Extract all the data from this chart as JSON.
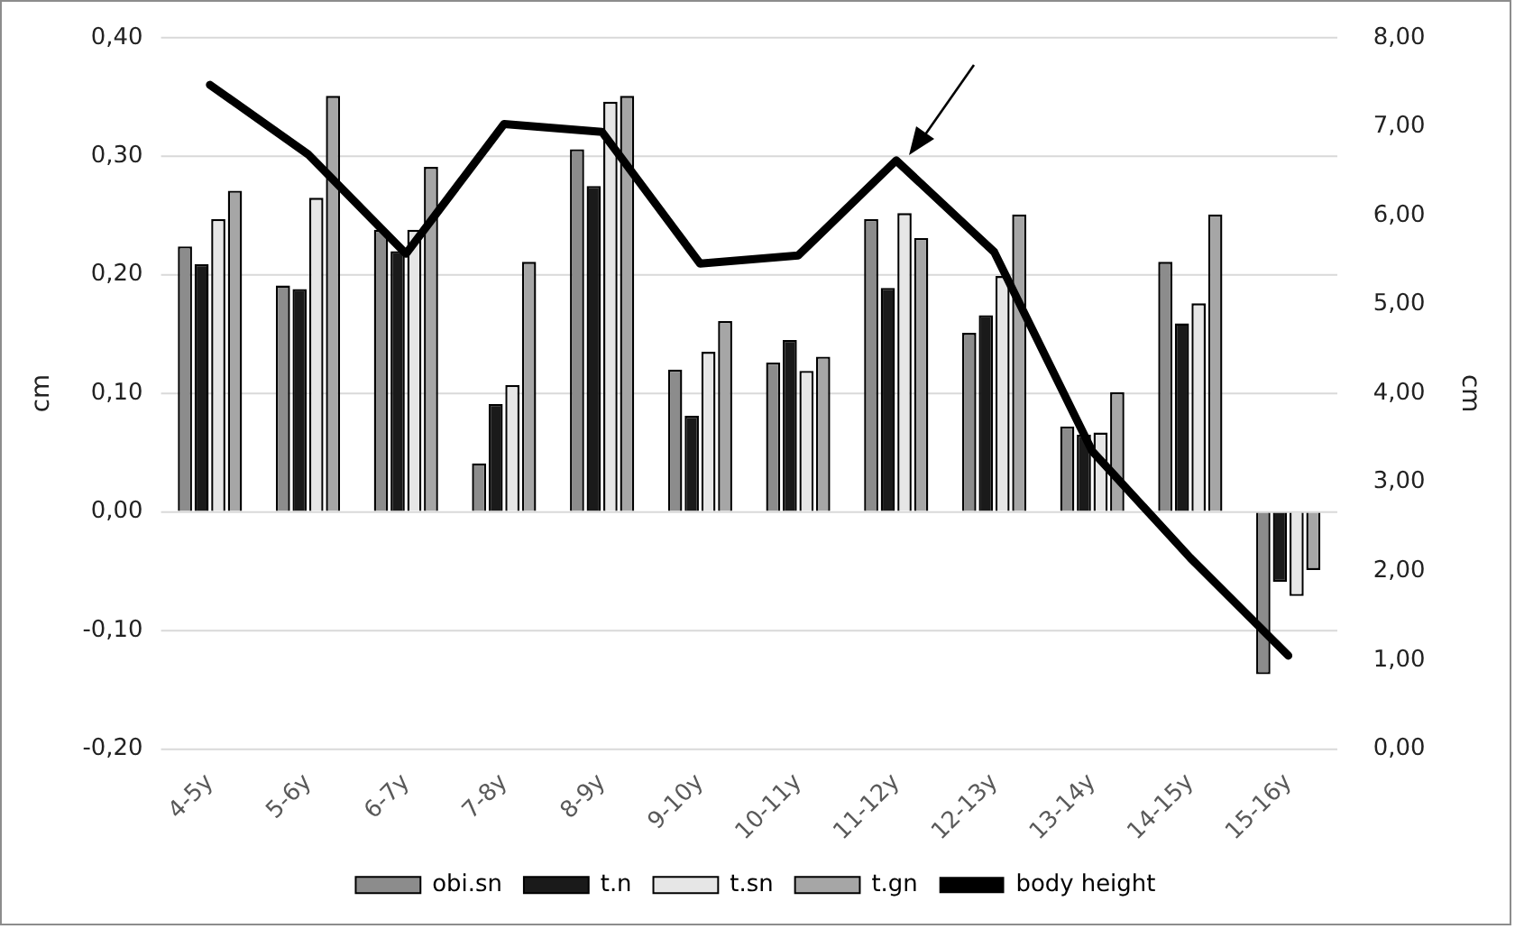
{
  "chart_data": {
    "type": "bar",
    "categories": [
      "4-5y",
      "5-6y",
      "6-7y",
      "7-8y",
      "8-9y",
      "9-10y",
      "10-11y",
      "11-12y",
      "12-13y",
      "13-14y",
      "14-15y",
      "15-16y"
    ],
    "series": [
      {
        "name": "obi.sn",
        "color": "#8c8c8c",
        "values": [
          0.224,
          0.191,
          0.238,
          0.041,
          0.306,
          0.12,
          0.126,
          0.247,
          0.151,
          0.072,
          0.211,
          -0.137
        ]
      },
      {
        "name": "t.n",
        "color": "#1a1a1a",
        "values": [
          0.209,
          0.188,
          0.22,
          0.091,
          0.275,
          0.081,
          0.145,
          0.189,
          0.166,
          0.065,
          0.159,
          -0.059
        ]
      },
      {
        "name": "t.sn",
        "color": "#e6e6e6",
        "values": [
          0.247,
          0.265,
          0.238,
          0.107,
          0.346,
          0.135,
          0.119,
          0.252,
          0.199,
          0.067,
          0.176,
          -0.071
        ]
      },
      {
        "name": "t.gn",
        "color": "#a6a6a6",
        "values": [
          0.271,
          0.351,
          0.291,
          0.211,
          0.351,
          0.161,
          0.131,
          0.231,
          0.251,
          0.101,
          0.251,
          -0.049
        ]
      },
      {
        "name": "body height",
        "type": "line",
        "axis": "y2",
        "color": "#000000",
        "values": [
          7.47,
          6.69,
          5.57,
          7.03,
          6.94,
          5.46,
          5.55,
          6.62,
          5.59,
          3.35,
          2.15,
          1.05
        ]
      }
    ],
    "ylabel": "cm",
    "y2label": "cm",
    "ylim": [
      -0.2,
      0.4
    ],
    "yticks": [
      {
        "value": -0.2,
        "label": "-0,20"
      },
      {
        "value": -0.1,
        "label": "-0,10"
      },
      {
        "value": 0,
        "label": "0,00"
      },
      {
        "value": 0.1,
        "label": "0,10"
      },
      {
        "value": 0.2,
        "label": "0,20"
      },
      {
        "value": 0.3,
        "label": "0,30"
      },
      {
        "value": 0.4,
        "label": "0,40"
      }
    ],
    "y2lim": [
      0,
      8
    ],
    "y2ticks": [
      {
        "value": 0,
        "label": "0,00"
      },
      {
        "value": 1,
        "label": "1,00"
      },
      {
        "value": 2,
        "label": "2,00"
      },
      {
        "value": 3,
        "label": "3,00"
      },
      {
        "value": 4,
        "label": "4,00"
      },
      {
        "value": 5,
        "label": "5,00"
      },
      {
        "value": 6,
        "label": "6,00"
      },
      {
        "value": 7,
        "label": "7,00"
      },
      {
        "value": 8,
        "label": "8,00"
      }
    ],
    "grid": "y",
    "legend": "bottom",
    "marker": "none",
    "line_style": "solid"
  }
}
